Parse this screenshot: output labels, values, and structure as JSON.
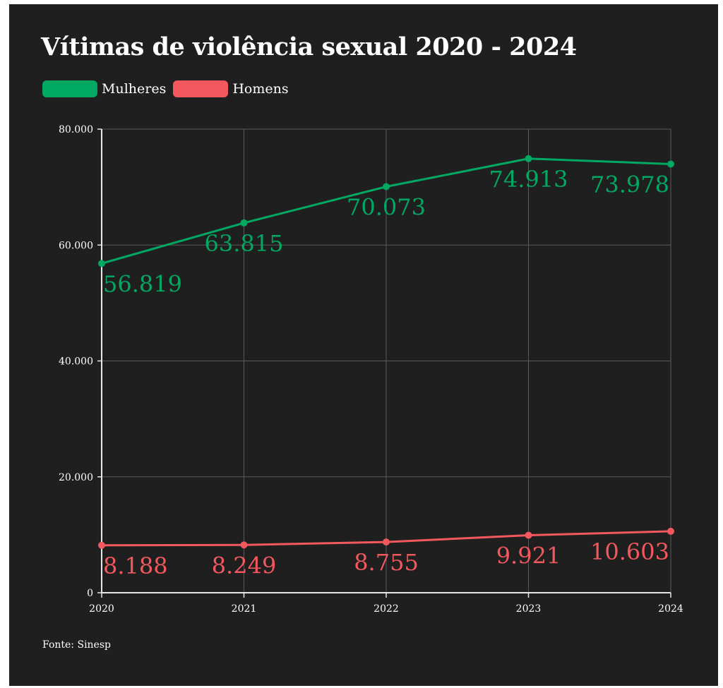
{
  "title": "Vítimas de violência sexual 2020 - 2024",
  "source": "Fonte: Sinesp",
  "legend": [
    {
      "name": "Mulheres",
      "color": "#00a862"
    },
    {
      "name": "Homens",
      "color": "#f2585d"
    }
  ],
  "colors": {
    "background": "#1f1f1f",
    "grid": "#5a5a5a",
    "axis": "#e6e6e6",
    "text": "#ffffff"
  },
  "chart_data": {
    "type": "line",
    "title": "Vítimas de violência sexual 2020 - 2024",
    "x": [
      2020,
      2021,
      2022,
      2023,
      2024
    ],
    "x_tick_labels": [
      "2020",
      "2021",
      "2022",
      "2023",
      "2024"
    ],
    "y_tick_values": [
      0,
      20000,
      40000,
      60000,
      80000
    ],
    "y_tick_labels": [
      "0",
      "20.000",
      "40.000",
      "60.000",
      "80.000"
    ],
    "ylim": [
      0,
      80000
    ],
    "grid": true,
    "legend_position": "top-left",
    "series": [
      {
        "name": "Mulheres",
        "color": "#00a862",
        "values": [
          56819,
          63815,
          70073,
          74913,
          73978
        ],
        "labels": [
          "56.819",
          "63.815",
          "70.073",
          "74.913",
          "73.978"
        ]
      },
      {
        "name": "Homens",
        "color": "#f2585d",
        "values": [
          8188,
          8249,
          8755,
          9921,
          10603
        ],
        "labels": [
          "8.188",
          "8.249",
          "8.755",
          "9.921",
          "10.603"
        ]
      }
    ]
  }
}
